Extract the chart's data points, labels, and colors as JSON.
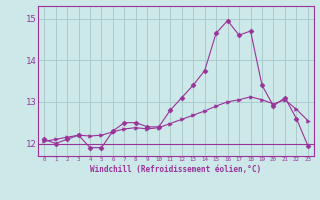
{
  "xlabel": "Windchill (Refroidissement éolien,°C)",
  "bg_color": "#cce8e8",
  "grid_color": "#aacccc",
  "line_color": "#993399",
  "x_hours": [
    0,
    1,
    2,
    3,
    4,
    5,
    6,
    7,
    8,
    9,
    10,
    11,
    12,
    13,
    14,
    15,
    16,
    17,
    18,
    19,
    20,
    21,
    22,
    23
  ],
  "y_main": [
    12.1,
    12.0,
    12.1,
    12.2,
    11.9,
    11.9,
    12.3,
    12.5,
    12.5,
    12.4,
    12.4,
    12.8,
    13.1,
    13.4,
    13.75,
    14.65,
    14.95,
    14.6,
    14.7,
    13.4,
    12.9,
    13.1,
    12.6,
    11.95
  ],
  "y_linear": [
    12.05,
    12.1,
    12.15,
    12.2,
    12.18,
    12.2,
    12.28,
    12.35,
    12.38,
    12.35,
    12.38,
    12.48,
    12.58,
    12.68,
    12.78,
    12.9,
    13.0,
    13.05,
    13.12,
    13.05,
    12.95,
    13.05,
    12.82,
    12.55
  ],
  "ylim": [
    11.7,
    15.3
  ],
  "yticks": [
    12,
    13,
    14,
    15
  ],
  "xlim": [
    -0.5,
    23.5
  ]
}
